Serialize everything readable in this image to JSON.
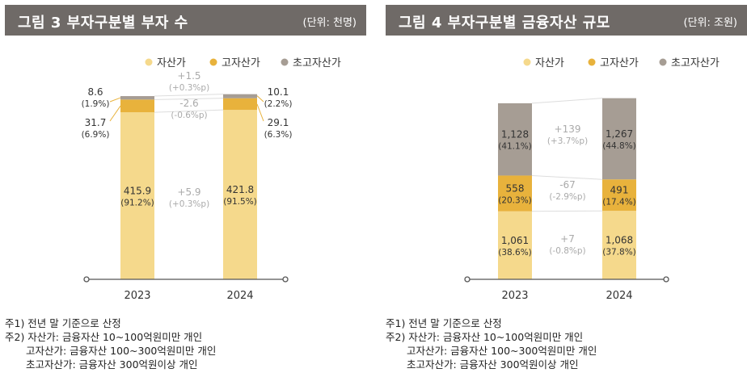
{
  "colors": {
    "asset": "#f5d98c",
    "high": "#e8b23c",
    "ultra": "#a69d94",
    "title_bg": "#6f6a67",
    "delta_text": "#aaaaaa"
  },
  "legend": [
    "자산가",
    "고자산가",
    "초고자산가"
  ],
  "panels": [
    {
      "title": "그림 3  부자구분별 부자 수",
      "unit": "(단위: 천명)",
      "notes": [
        "주1) 전년 말 기준으로 산정",
        "주2) 자산가:  금융자산 10~100억원미만 개인",
        "고자산가:  금융자산 100~300억원미만 개인",
        "초고자산가:  금융자산 300억원이상 개인"
      ]
    },
    {
      "title": "그림 4  부자구분별 금융자산 규모",
      "unit": "(단위: 조원)",
      "notes": [
        "주1) 전년 말 기준으로 산정",
        "주2) 자산가:  금융자산 10~100억원미만 개인",
        "고자산가:  금융자산 100~300억원미만 개인",
        "초고자산가:  금융자산 300억원이상 개인"
      ]
    }
  ],
  "chart_data": [
    {
      "type": "bar",
      "stacked": true,
      "categories": [
        "2023",
        "2024"
      ],
      "series": [
        {
          "name": "자산가",
          "values": [
            415.9,
            421.8
          ],
          "shares": [
            "(91.2%)",
            "(91.5%)"
          ]
        },
        {
          "name": "고자산가",
          "values": [
            31.7,
            29.1
          ],
          "shares": [
            "(6.9%)",
            "(6.3%)"
          ]
        },
        {
          "name": "초고자산가",
          "values": [
            8.6,
            10.1
          ],
          "shares": [
            "(1.9%)",
            "(2.2%)"
          ]
        }
      ],
      "changes": [
        {
          "value": "+5.9",
          "pct": "(+0.3%p)"
        },
        {
          "value": "-2.6",
          "pct": "(-0.6%p)"
        },
        {
          "value": "+1.5",
          "pct": "(+0.3%p)"
        }
      ]
    },
    {
      "type": "bar",
      "stacked": true,
      "categories": [
        "2023",
        "2024"
      ],
      "series": [
        {
          "name": "자산가",
          "values": [
            1061,
            1068
          ],
          "labels": [
            "1,061",
            "1,068"
          ],
          "shares": [
            "(38.6%)",
            "(37.8%)"
          ]
        },
        {
          "name": "고자산가",
          "values": [
            558,
            491
          ],
          "labels": [
            "558",
            "491"
          ],
          "shares": [
            "(20.3%)",
            "(17.4%)"
          ]
        },
        {
          "name": "초고자산가",
          "values": [
            1128,
            1267
          ],
          "labels": [
            "1,128",
            "1,267"
          ],
          "shares": [
            "(41.1%)",
            "(44.8%)"
          ]
        }
      ],
      "changes": [
        {
          "value": "+7",
          "pct": "(-0.8%p)"
        },
        {
          "value": "-67",
          "pct": "(-2.9%p)"
        },
        {
          "value": "+139",
          "pct": "(+3.7%p)"
        }
      ]
    }
  ]
}
